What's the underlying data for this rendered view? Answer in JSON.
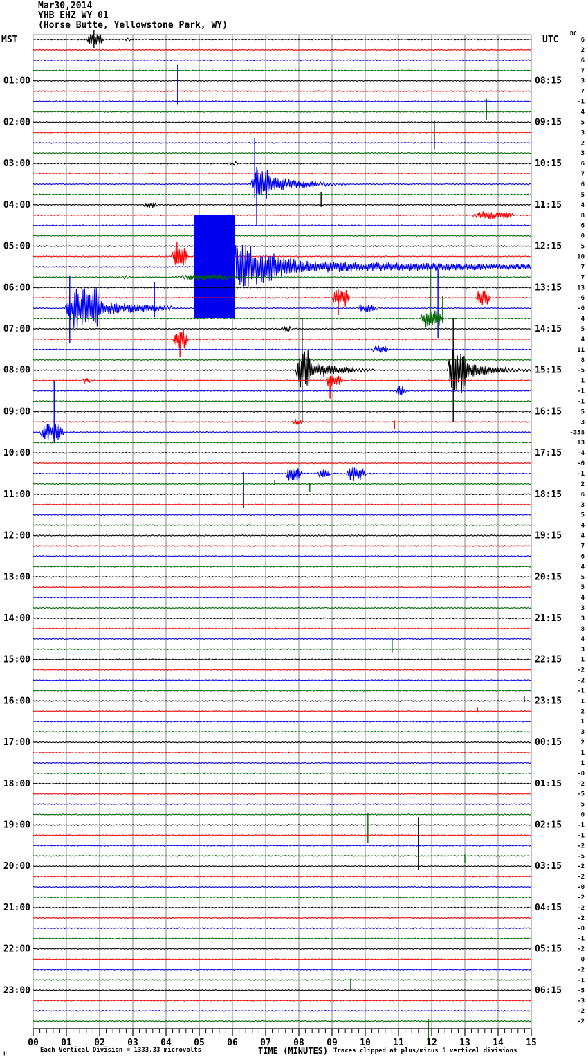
{
  "header": {
    "date": "Mar30,2014",
    "station": "YHB EHZ WY 01",
    "location": "(Horse Butte, Yellowstone Park, WY)"
  },
  "footer": {
    "left_note": "Each Vertical Division = 1333.33 microvolts",
    "right_note": "Traces clipped at plus/minus 5 vertical divisions",
    "corner_glyph": "µ"
  },
  "chart_data": {
    "type": "line",
    "subtype": "helicorder-seismogram",
    "left_axis_title": "MST",
    "right_axis_title": "UTC",
    "dc_header": "DC",
    "x_axis_title": "TIME (MINUTES)",
    "x_tick_labels": [
      "00",
      "01",
      "02",
      "03",
      "04",
      "05",
      "06",
      "07",
      "08",
      "09",
      "10",
      "11",
      "12",
      "13",
      "14",
      "15"
    ],
    "minutes_per_trace": 15,
    "traces_per_hour": 4,
    "rows": 96,
    "clip_divisions": 5,
    "color_cycle": [
      "#000000",
      "#ff0000",
      "#0000ee",
      "#006600"
    ],
    "grid_color": "#848484",
    "mst_labels": [
      "01:00",
      "02:00",
      "03:00",
      "04:00",
      "05:00",
      "06:00",
      "07:00",
      "08:00",
      "09:00",
      "10:00",
      "11:00",
      "12:00",
      "13:00",
      "14:00",
      "15:00",
      "16:00",
      "17:00",
      "18:00",
      "19:00",
      "20:00",
      "21:00",
      "22:00",
      "23:00"
    ],
    "utc_labels": [
      "08:15",
      "09:15",
      "10:15",
      "11:15",
      "12:15",
      "13:15",
      "14:15",
      "15:15",
      "16:15",
      "17:15",
      "18:15",
      "19:15",
      "20:15",
      "21:15",
      "22:15",
      "23:15",
      "00:15",
      "01:15",
      "02:15",
      "03:15",
      "04:15",
      "05:15",
      "06:15"
    ],
    "dc_values": [
      "6",
      "2",
      "6",
      "7",
      "3",
      "7",
      "-1",
      "4",
      "5",
      "3",
      "2",
      "3",
      "6",
      "7",
      "6",
      "5",
      "4",
      "8",
      "6",
      "0",
      "5",
      "10",
      "7",
      "7",
      "13",
      "-6",
      "-6",
      "4",
      "5",
      "4",
      "11",
      "8",
      "-5",
      "1",
      "-1",
      "-1",
      "5",
      "3",
      "-358",
      "13",
      "-4",
      "-0",
      "-1",
      "2",
      "6",
      "3",
      "5",
      "4",
      "4",
      "7",
      "6",
      "4",
      "5",
      "5",
      "4",
      "3",
      "3",
      "8",
      "4",
      "3",
      "1",
      "-2",
      "-2",
      "-1",
      "1",
      "2",
      "1",
      "3",
      "2",
      "1",
      "1",
      "-0",
      "-2",
      "-5",
      "5",
      "0",
      "-1",
      "-1",
      "-2",
      "-5",
      "-2",
      "-2",
      "-0",
      "-2",
      "-2",
      "-2",
      "-0",
      "-1",
      "-2",
      "0",
      "-2",
      "-1",
      "-5",
      "-3",
      "-2",
      "-2"
    ],
    "events": [
      {
        "row": 0,
        "type": "burst",
        "min0": 1.6,
        "min1": 2.12,
        "amp": 0.6
      },
      {
        "row": 0,
        "type": "spike",
        "min": 1.83,
        "up": 0.87,
        "down": 0.8
      },
      {
        "row": 0,
        "type": "burst",
        "min0": 2.75,
        "min1": 2.96,
        "amp": 0.17
      },
      {
        "row": 6,
        "type": "spike",
        "min": 4.35,
        "up": 3.55,
        "down": 0.27
      },
      {
        "row": 7,
        "type": "spike",
        "min": 13.65,
        "up": 1.27,
        "down": 0.8
      },
      {
        "row": 8,
        "type": "spike",
        "min": 12.08,
        "up": 0.13,
        "down": 2.61
      },
      {
        "row": 12,
        "type": "burst",
        "min0": 5.83,
        "min1": 6.19,
        "amp": 0.2
      },
      {
        "row": 14,
        "type": "spike",
        "min": 6.67,
        "up": 4.42,
        "down": 1.34
      },
      {
        "row": 14,
        "type": "spike",
        "min": 6.73,
        "up": 1.67,
        "down": 4.02
      },
      {
        "row": 14,
        "type": "burst",
        "min0": 6.56,
        "min1": 7.23,
        "amp": 1.47
      },
      {
        "row": 14,
        "type": "coda",
        "min0": 7.23,
        "min1": 9.42,
        "amp0": 0.8,
        "amp1": 0.13
      },
      {
        "row": 16,
        "type": "burst",
        "min0": 3.27,
        "min1": 3.75,
        "amp": 0.33
      },
      {
        "row": 16,
        "type": "spike",
        "min": 8.67,
        "up": 1.27,
        "down": 0.2
      },
      {
        "row": 17,
        "type": "burst",
        "min0": 13.23,
        "min1": 14.52,
        "amp": 0.4
      },
      {
        "row": 21,
        "type": "burst",
        "min0": 4.17,
        "min1": 4.67,
        "amp": 0.94
      },
      {
        "row": 21,
        "type": "spike",
        "min": 4.33,
        "up": 1.41,
        "down": 0.67
      },
      {
        "row": 22,
        "type": "block",
        "min0": 4.85,
        "min1": 6.08,
        "half": 5.0
      },
      {
        "row": 22,
        "type": "coda",
        "min0": 6.08,
        "min1": 7.96,
        "amp0": 2.81,
        "amp1": 0.8
      },
      {
        "row": 22,
        "type": "coda",
        "min0": 7.96,
        "min1": 15.0,
        "amp0": 0.6,
        "amp1": 0.27
      },
      {
        "row": 23,
        "type": "burst",
        "min0": 2.6,
        "min1": 2.96,
        "amp": 0.2
      },
      {
        "row": 23,
        "type": "burst",
        "min0": 4.21,
        "min1": 6.19,
        "amp": 0.27
      },
      {
        "row": 25,
        "type": "burst",
        "min0": 9.0,
        "min1": 9.52,
        "amp": 0.94
      },
      {
        "row": 25,
        "type": "spike",
        "min": 9.19,
        "up": 0.8,
        "down": 1.67
      },
      {
        "row": 25,
        "type": "burst",
        "min0": 13.33,
        "min1": 13.75,
        "amp": 0.8
      },
      {
        "row": 26,
        "type": "burst",
        "min0": 1.0,
        "min1": 2.13,
        "amp": 2.14
      },
      {
        "row": 26,
        "type": "spike",
        "min": 1.1,
        "up": 3.08,
        "down": 3.35
      },
      {
        "row": 26,
        "type": "coda",
        "min0": 2.13,
        "min1": 4.52,
        "amp0": 0.67,
        "amp1": 0.2
      },
      {
        "row": 26,
        "type": "spike",
        "min": 3.65,
        "up": 2.55,
        "down": 0.87
      },
      {
        "row": 26,
        "type": "burst",
        "min0": 9.69,
        "min1": 10.42,
        "amp": 0.33
      },
      {
        "row": 26,
        "type": "spike",
        "min": 12.19,
        "up": 3.82,
        "down": 2.88
      },
      {
        "row": 27,
        "type": "burst",
        "min0": 11.67,
        "min1": 12.33,
        "amp": 0.94
      },
      {
        "row": 27,
        "type": "spike",
        "min": 11.96,
        "up": 4.82,
        "down": 0.4
      },
      {
        "row": 27,
        "type": "spike",
        "min": 12.33,
        "up": 2.21,
        "down": 0.4
      },
      {
        "row": 28,
        "type": "burst",
        "min0": 7.44,
        "min1": 7.79,
        "amp": 0.27
      },
      {
        "row": 29,
        "type": "burst",
        "min0": 4.21,
        "min1": 4.67,
        "amp": 0.94
      },
      {
        "row": 29,
        "type": "spike",
        "min": 4.42,
        "up": 0.67,
        "down": 1.74
      },
      {
        "row": 30,
        "type": "burst",
        "min0": 10.21,
        "min1": 10.71,
        "amp": 0.4
      },
      {
        "row": 32,
        "type": "spike",
        "min": 8.1,
        "up": 5.0,
        "down": 5.0
      },
      {
        "row": 32,
        "type": "burst",
        "min0": 7.94,
        "min1": 8.38,
        "amp": 2.14
      },
      {
        "row": 32,
        "type": "coda",
        "min0": 8.38,
        "min1": 10.35,
        "amp0": 0.87,
        "amp1": 0.13
      },
      {
        "row": 32,
        "type": "spike",
        "min": 12.65,
        "up": 5.0,
        "down": 5.0
      },
      {
        "row": 32,
        "type": "burst",
        "min0": 12.48,
        "min1": 13.08,
        "amp": 2.28
      },
      {
        "row": 32,
        "type": "coda",
        "min0": 13.08,
        "min1": 15.0,
        "amp0": 0.74,
        "amp1": 0.13
      },
      {
        "row": 33,
        "type": "burst",
        "min0": 1.46,
        "min1": 1.75,
        "amp": 0.27
      },
      {
        "row": 33,
        "type": "burst",
        "min0": 8.79,
        "min1": 9.31,
        "amp": 0.67
      },
      {
        "row": 33,
        "type": "spike",
        "min": 8.94,
        "up": 0.33,
        "down": 1.74
      },
      {
        "row": 34,
        "type": "burst",
        "min0": 10.92,
        "min1": 11.21,
        "amp": 0.54
      },
      {
        "row": 37,
        "type": "burst",
        "min0": 7.79,
        "min1": 8.13,
        "amp": 0.27
      },
      {
        "row": 37,
        "type": "spike",
        "min": 10.88,
        "up": 0.13,
        "down": 0.67
      },
      {
        "row": 38,
        "type": "burst",
        "min0": 0.21,
        "min1": 0.92,
        "amp": 0.87
      },
      {
        "row": 38,
        "type": "spike",
        "min": 0.63,
        "up": 4.96,
        "down": 1.07
      },
      {
        "row": 42,
        "type": "spike",
        "min": 6.33,
        "up": 0.13,
        "down": 3.35
      },
      {
        "row": 42,
        "type": "burst",
        "min0": 7.6,
        "min1": 8.08,
        "amp": 0.8
      },
      {
        "row": 42,
        "type": "burst",
        "min0": 8.54,
        "min1": 8.96,
        "amp": 0.47
      },
      {
        "row": 42,
        "type": "burst",
        "min0": 9.42,
        "min1": 10.0,
        "amp": 0.8
      },
      {
        "row": 43,
        "type": "spike",
        "min": 7.27,
        "up": 0.4,
        "down": 0.13
      },
      {
        "row": 43,
        "type": "spike",
        "min": 8.33,
        "up": 0.13,
        "down": 0.8
      },
      {
        "row": 59,
        "type": "spike",
        "min": 10.81,
        "up": 1.07,
        "down": 0.33
      },
      {
        "row": 64,
        "type": "spike",
        "min": 14.79,
        "up": 0.47,
        "down": 0.13
      },
      {
        "row": 65,
        "type": "spike",
        "min": 13.38,
        "up": 0.4,
        "down": 0.13
      },
      {
        "row": 75,
        "type": "spike",
        "min": 10.08,
        "up": 0.13,
        "down": 2.75
      },
      {
        "row": 79,
        "type": "spike",
        "min": 13.0,
        "up": 0.13,
        "down": 0.67
      },
      {
        "row": 80,
        "type": "spike",
        "min": 11.6,
        "up": 4.76,
        "down": 0.33
      },
      {
        "row": 91,
        "type": "spike",
        "min": 9.56,
        "up": 0.13,
        "down": 1.07
      },
      {
        "row": 95,
        "type": "spike",
        "min": 11.9,
        "up": 0.2,
        "down": 2.34
      }
    ]
  }
}
